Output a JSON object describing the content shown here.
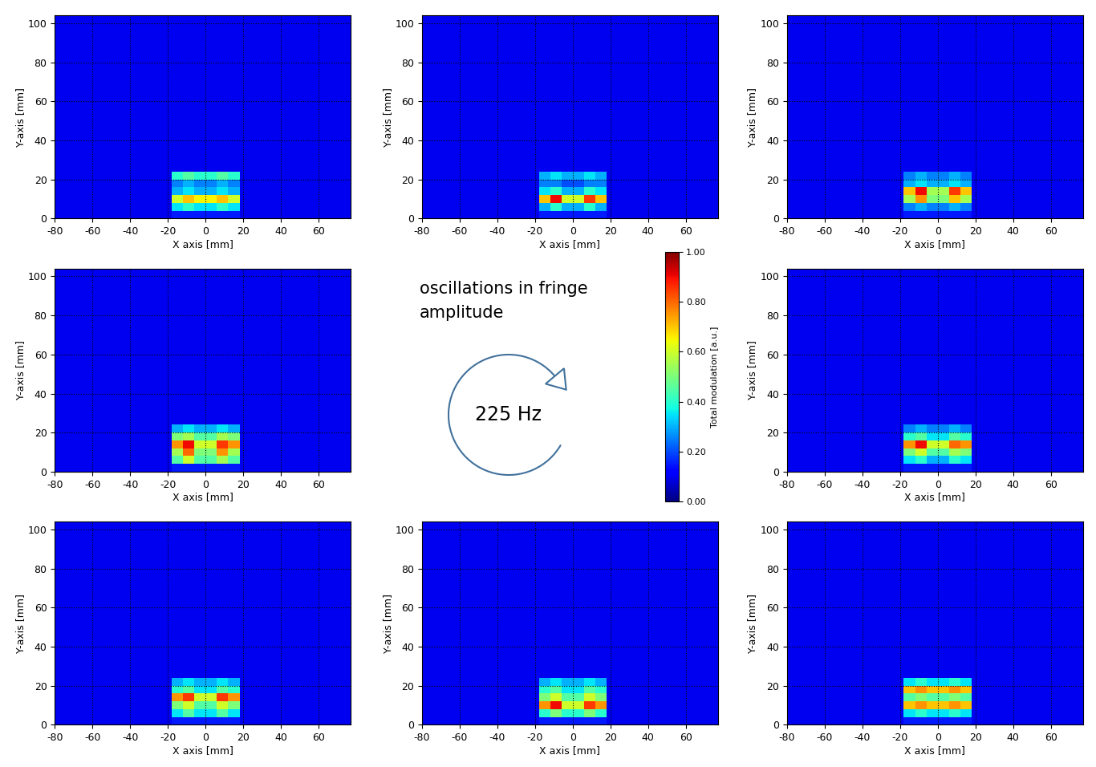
{
  "chart_data": [
    {
      "type": "heatmap",
      "x_label": "X axis [mm]",
      "y_label": "Y-axis [mm]",
      "xlim": [
        -80,
        77
      ],
      "ylim": [
        0,
        104
      ],
      "xticks": [
        -80,
        -60,
        -40,
        -20,
        0,
        20,
        40,
        60
      ],
      "yticks": [
        0,
        20,
        40,
        60,
        80,
        100
      ],
      "grid": true,
      "x_edges": [
        -80,
        -18,
        -12,
        -6,
        0,
        6,
        12,
        18,
        77
      ],
      "y_edges": [
        0,
        4,
        8,
        12,
        16,
        20,
        24,
        104
      ],
      "cells": [
        [
          0.1,
          0.15,
          0.15,
          0.15,
          0.15,
          0.15,
          0.15,
          0.1
        ],
        [
          0.1,
          0.35,
          0.4,
          0.35,
          0.35,
          0.4,
          0.35,
          0.1
        ],
        [
          0.1,
          0.6,
          0.7,
          0.65,
          0.65,
          0.7,
          0.6,
          0.1
        ],
        [
          0.1,
          0.3,
          0.35,
          0.3,
          0.3,
          0.35,
          0.3,
          0.1
        ],
        [
          0.1,
          0.25,
          0.3,
          0.25,
          0.25,
          0.3,
          0.25,
          0.1
        ],
        [
          0.1,
          0.4,
          0.45,
          0.4,
          0.4,
          0.45,
          0.4,
          0.1
        ],
        [
          0.1,
          0.1,
          0.1,
          0.1,
          0.1,
          0.1,
          0.1,
          0.1
        ]
      ]
    },
    {
      "type": "heatmap",
      "x_label": "X axis [mm]",
      "y_label": "Y-axis [mm]",
      "xlim": [
        -80,
        77
      ],
      "ylim": [
        0,
        104
      ],
      "xticks": [
        -80,
        -60,
        -40,
        -20,
        0,
        20,
        40,
        60
      ],
      "yticks": [
        0,
        20,
        40,
        60,
        80,
        100
      ],
      "grid": true,
      "x_edges": [
        -80,
        -18,
        -12,
        -6,
        0,
        6,
        12,
        18,
        77
      ],
      "y_edges": [
        0,
        4,
        8,
        12,
        16,
        20,
        24,
        104
      ],
      "cells": [
        [
          0.1,
          0.15,
          0.15,
          0.15,
          0.15,
          0.15,
          0.15,
          0.1
        ],
        [
          0.1,
          0.3,
          0.4,
          0.3,
          0.3,
          0.4,
          0.3,
          0.1
        ],
        [
          0.1,
          0.7,
          0.9,
          0.6,
          0.6,
          0.85,
          0.7,
          0.1
        ],
        [
          0.1,
          0.35,
          0.4,
          0.3,
          0.3,
          0.4,
          0.35,
          0.1
        ],
        [
          0.1,
          0.25,
          0.25,
          0.2,
          0.2,
          0.25,
          0.25,
          0.1
        ],
        [
          0.1,
          0.3,
          0.35,
          0.3,
          0.3,
          0.35,
          0.3,
          0.1
        ],
        [
          0.1,
          0.1,
          0.1,
          0.1,
          0.1,
          0.1,
          0.1,
          0.1
        ]
      ]
    },
    {
      "type": "heatmap",
      "x_label": "X axis [mm]",
      "y_label": "Y-axis [mm]",
      "xlim": [
        -80,
        77
      ],
      "ylim": [
        0,
        104
      ],
      "xticks": [
        -80,
        -60,
        -40,
        -20,
        0,
        20,
        40,
        60
      ],
      "yticks": [
        0,
        20,
        40,
        60,
        80,
        100
      ],
      "grid": true,
      "x_edges": [
        -80,
        -18,
        -12,
        -6,
        0,
        6,
        12,
        18,
        77
      ],
      "y_edges": [
        0,
        4,
        8,
        12,
        16,
        20,
        24,
        104
      ],
      "cells": [
        [
          0.1,
          0.15,
          0.15,
          0.15,
          0.15,
          0.15,
          0.15,
          0.1
        ],
        [
          0.1,
          0.25,
          0.3,
          0.25,
          0.25,
          0.3,
          0.25,
          0.1
        ],
        [
          0.1,
          0.55,
          0.75,
          0.5,
          0.5,
          0.7,
          0.55,
          0.1
        ],
        [
          0.1,
          0.7,
          0.9,
          0.55,
          0.55,
          0.85,
          0.7,
          0.1
        ],
        [
          0.1,
          0.3,
          0.35,
          0.3,
          0.3,
          0.35,
          0.3,
          0.1
        ],
        [
          0.1,
          0.25,
          0.3,
          0.25,
          0.25,
          0.3,
          0.25,
          0.1
        ],
        [
          0.1,
          0.1,
          0.1,
          0.1,
          0.1,
          0.1,
          0.1,
          0.1
        ]
      ]
    },
    {
      "type": "heatmap",
      "x_label": "X axis [mm]",
      "y_label": "Y-axis [mm]",
      "xlim": [
        -80,
        77
      ],
      "ylim": [
        0,
        104
      ],
      "xticks": [
        -80,
        -60,
        -40,
        -20,
        0,
        20,
        40,
        60
      ],
      "yticks": [
        0,
        20,
        40,
        60,
        80,
        100
      ],
      "grid": true,
      "x_edges": [
        -80,
        -18,
        -12,
        -6,
        0,
        6,
        12,
        18,
        77
      ],
      "y_edges": [
        0,
        4,
        8,
        12,
        16,
        20,
        24,
        104
      ],
      "cells": [
        [
          0.1,
          0.15,
          0.15,
          0.15,
          0.15,
          0.15,
          0.15,
          0.1
        ],
        [
          0.1,
          0.45,
          0.6,
          0.45,
          0.45,
          0.55,
          0.45,
          0.1
        ],
        [
          0.1,
          0.55,
          0.8,
          0.5,
          0.5,
          0.75,
          0.55,
          0.1
        ],
        [
          0.1,
          0.75,
          0.9,
          0.6,
          0.6,
          0.85,
          0.75,
          0.1
        ],
        [
          0.1,
          0.5,
          0.55,
          0.45,
          0.45,
          0.55,
          0.5,
          0.1
        ],
        [
          0.1,
          0.3,
          0.35,
          0.3,
          0.3,
          0.35,
          0.3,
          0.1
        ],
        [
          0.1,
          0.1,
          0.1,
          0.1,
          0.1,
          0.1,
          0.1,
          0.1
        ]
      ]
    },
    {
      "type": "heatmap",
      "x_label": "X axis [mm]",
      "y_label": "Y-axis [mm]",
      "xlim": [
        -80,
        77
      ],
      "ylim": [
        0,
        104
      ],
      "xticks": [
        -80,
        -60,
        -40,
        -20,
        0,
        20,
        40,
        60
      ],
      "yticks": [
        0,
        20,
        40,
        60,
        80,
        100
      ],
      "grid": true,
      "x_edges": [
        -80,
        -18,
        -12,
        -6,
        0,
        6,
        12,
        18,
        77
      ],
      "y_edges": [
        0,
        4,
        8,
        12,
        16,
        20,
        24,
        104
      ],
      "cells": [
        [
          0.1,
          0.15,
          0.15,
          0.15,
          0.15,
          0.15,
          0.15,
          0.1
        ],
        [
          0.1,
          0.35,
          0.4,
          0.3,
          0.3,
          0.4,
          0.35,
          0.1
        ],
        [
          0.1,
          0.5,
          0.6,
          0.45,
          0.45,
          0.55,
          0.5,
          0.1
        ],
        [
          0.1,
          0.75,
          0.9,
          0.6,
          0.6,
          0.8,
          0.75,
          0.1
        ],
        [
          0.1,
          0.4,
          0.45,
          0.35,
          0.35,
          0.45,
          0.4,
          0.1
        ],
        [
          0.1,
          0.25,
          0.3,
          0.25,
          0.25,
          0.3,
          0.25,
          0.1
        ],
        [
          0.1,
          0.1,
          0.1,
          0.1,
          0.1,
          0.1,
          0.1,
          0.1
        ]
      ]
    },
    {
      "type": "heatmap",
      "x_label": "X axis [mm]",
      "y_label": "Y-axis [mm]",
      "xlim": [
        -80,
        77
      ],
      "ylim": [
        0,
        104
      ],
      "xticks": [
        -80,
        -60,
        -40,
        -20,
        0,
        20,
        40,
        60
      ],
      "yticks": [
        0,
        20,
        40,
        60,
        80,
        100
      ],
      "grid": true,
      "x_edges": [
        -80,
        -18,
        -12,
        -6,
        0,
        6,
        12,
        18,
        77
      ],
      "y_edges": [
        0,
        4,
        8,
        12,
        16,
        20,
        24,
        104
      ],
      "cells": [
        [
          0.1,
          0.15,
          0.15,
          0.15,
          0.15,
          0.15,
          0.15,
          0.1
        ],
        [
          0.1,
          0.35,
          0.45,
          0.35,
          0.35,
          0.45,
          0.35,
          0.1
        ],
        [
          0.1,
          0.5,
          0.6,
          0.45,
          0.45,
          0.6,
          0.5,
          0.1
        ],
        [
          0.1,
          0.75,
          0.85,
          0.6,
          0.6,
          0.85,
          0.75,
          0.1
        ],
        [
          0.1,
          0.4,
          0.45,
          0.35,
          0.35,
          0.45,
          0.4,
          0.1
        ],
        [
          0.1,
          0.3,
          0.35,
          0.3,
          0.3,
          0.35,
          0.3,
          0.1
        ],
        [
          0.1,
          0.1,
          0.1,
          0.1,
          0.1,
          0.1,
          0.1,
          0.1
        ]
      ]
    },
    {
      "type": "heatmap",
      "x_label": "X axis [mm]",
      "y_label": "Y-axis [mm]",
      "xlim": [
        -80,
        77
      ],
      "ylim": [
        0,
        104
      ],
      "xticks": [
        -80,
        -60,
        -40,
        -20,
        0,
        20,
        40,
        60
      ],
      "yticks": [
        0,
        20,
        40,
        60,
        80,
        100
      ],
      "grid": true,
      "x_edges": [
        -80,
        -18,
        -12,
        -6,
        0,
        6,
        12,
        18,
        77
      ],
      "y_edges": [
        0,
        4,
        8,
        12,
        16,
        20,
        24,
        104
      ],
      "cells": [
        [
          0.1,
          0.15,
          0.15,
          0.15,
          0.15,
          0.15,
          0.15,
          0.1
        ],
        [
          0.1,
          0.4,
          0.5,
          0.4,
          0.4,
          0.5,
          0.4,
          0.1
        ],
        [
          0.1,
          0.75,
          0.9,
          0.6,
          0.6,
          0.85,
          0.75,
          0.1
        ],
        [
          0.1,
          0.5,
          0.6,
          0.45,
          0.45,
          0.6,
          0.5,
          0.1
        ],
        [
          0.1,
          0.4,
          0.45,
          0.35,
          0.35,
          0.45,
          0.4,
          0.1
        ],
        [
          0.1,
          0.3,
          0.35,
          0.3,
          0.3,
          0.35,
          0.3,
          0.1
        ],
        [
          0.1,
          0.1,
          0.1,
          0.1,
          0.1,
          0.1,
          0.1,
          0.1
        ]
      ]
    },
    {
      "type": "heatmap",
      "x_label": "X axis [mm]",
      "y_label": "Y-axis [mm]",
      "xlim": [
        -80,
        77
      ],
      "ylim": [
        0,
        104
      ],
      "xticks": [
        -80,
        -60,
        -40,
        -20,
        0,
        20,
        40,
        60
      ],
      "yticks": [
        0,
        20,
        40,
        60,
        80,
        100
      ],
      "grid": true,
      "x_edges": [
        -80,
        -18,
        -12,
        -6,
        0,
        6,
        12,
        18,
        77
      ],
      "y_edges": [
        0,
        4,
        8,
        12,
        16,
        20,
        24,
        104
      ],
      "cells": [
        [
          0.1,
          0.15,
          0.15,
          0.15,
          0.15,
          0.15,
          0.15,
          0.1
        ],
        [
          0.1,
          0.35,
          0.4,
          0.35,
          0.35,
          0.4,
          0.35,
          0.1
        ],
        [
          0.1,
          0.7,
          0.75,
          0.7,
          0.7,
          0.75,
          0.7,
          0.1
        ],
        [
          0.1,
          0.45,
          0.5,
          0.45,
          0.45,
          0.5,
          0.45,
          0.1
        ],
        [
          0.1,
          0.7,
          0.75,
          0.7,
          0.7,
          0.75,
          0.7,
          0.1
        ],
        [
          0.1,
          0.35,
          0.4,
          0.35,
          0.35,
          0.4,
          0.35,
          0.1
        ],
        [
          0.1,
          0.1,
          0.1,
          0.1,
          0.1,
          0.1,
          0.1,
          0.1
        ]
      ]
    }
  ],
  "annotation": {
    "lines": [
      "oscillations in fringe",
      "amplitude"
    ],
    "frequency": "225 Hz"
  },
  "colorbar": {
    "label": "Total modulation [a.u.]",
    "range": [
      0,
      1
    ],
    "ticks": [
      {
        "value": 0,
        "label": "0.00"
      },
      {
        "value": 0.2,
        "label": "0.20"
      },
      {
        "value": 0.4,
        "label": "0.40"
      },
      {
        "value": 0.6,
        "label": "0.60"
      },
      {
        "value": 0.8,
        "label": "0.80"
      },
      {
        "value": 1,
        "label": "1.00"
      }
    ]
  }
}
